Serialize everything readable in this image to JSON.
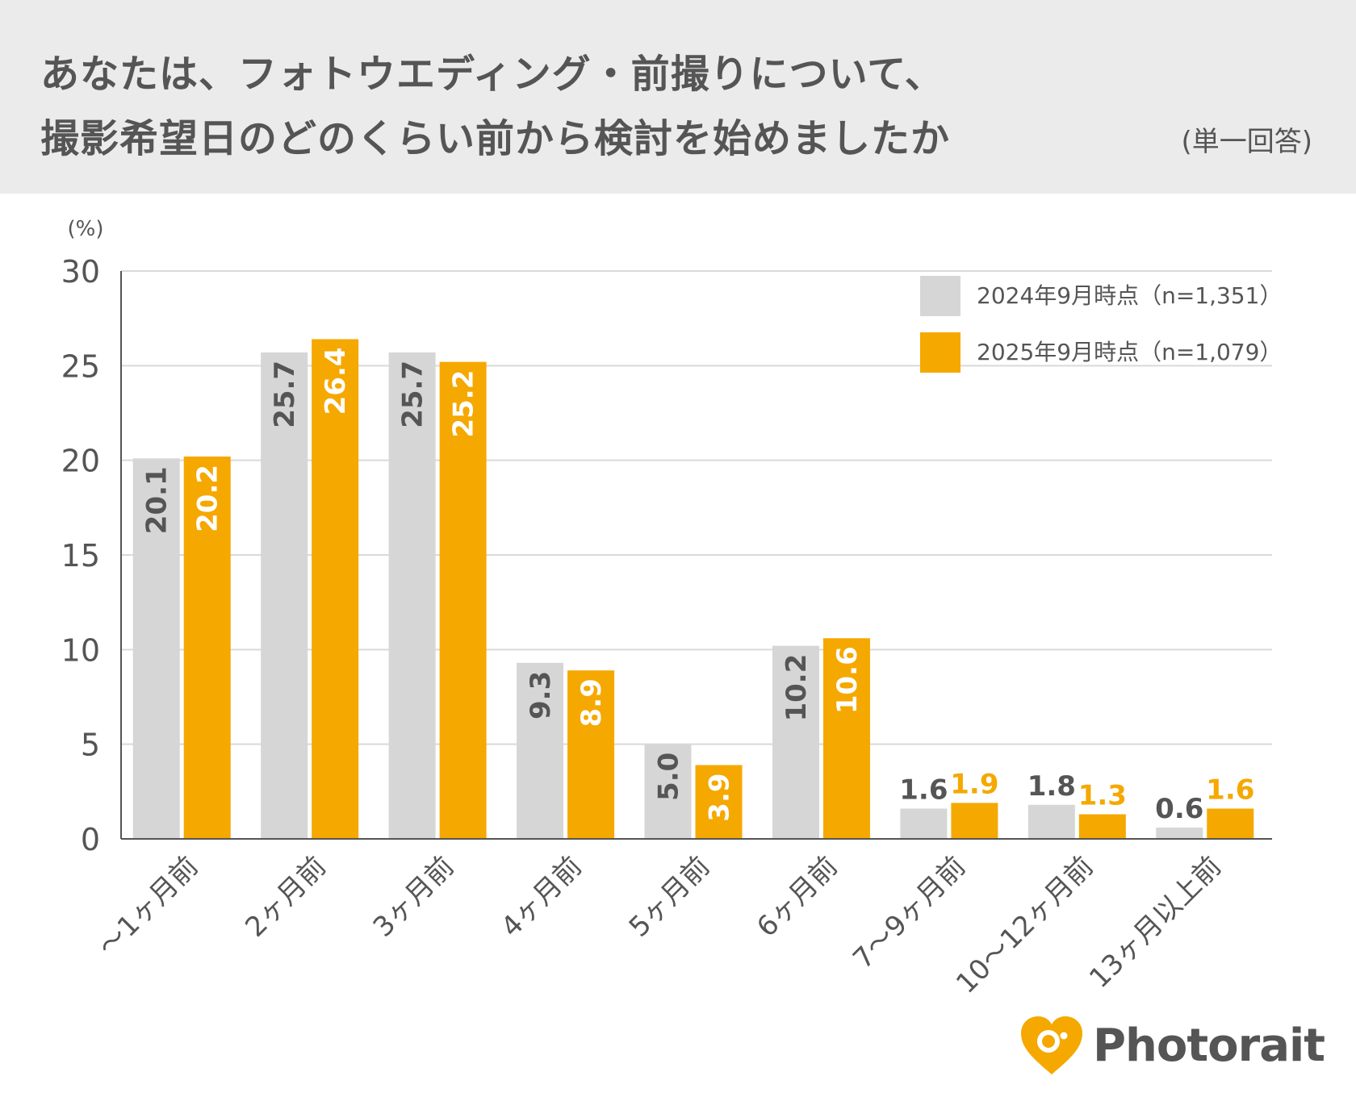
{
  "header": {
    "title_line1": "あなたは、フォトウエディング・前撮りについて、",
    "title_line2": "撮影希望日のどのくらい前から検討を始めましたか",
    "note": "(単一回答)"
  },
  "colors": {
    "series_2024": "#d6d6d6",
    "series_2025": "#f5a800",
    "label_2024": "#555555",
    "label_2025_inside": "#ffffff",
    "label_2025_outside": "#f5a800",
    "grid": "#d9d9d9",
    "axis": "#555555"
  },
  "chart_data": {
    "type": "bar",
    "unit_label": "(%)",
    "ylim": [
      0,
      30
    ],
    "yticks": [
      0,
      5,
      10,
      15,
      20,
      25,
      30
    ],
    "grid": true,
    "legend_position": "top-right",
    "categories": [
      "〜1ヶ月前",
      "2ヶ月前",
      "3ヶ月前",
      "4ヶ月前",
      "5ヶ月前",
      "6ヶ月前",
      "7〜9ヶ月前",
      "10〜12ヶ月前",
      "13ヶ月以上前"
    ],
    "series": [
      {
        "name": "2024年9月時点（n=1,351）",
        "values": [
          20.1,
          25.7,
          25.7,
          9.3,
          5.0,
          10.2,
          1.6,
          1.8,
          0.6
        ],
        "labels": [
          "20.1",
          "25.7",
          "25.7",
          "9.3",
          "5.0",
          "10.2",
          "1.6",
          "1.8",
          "0.6"
        ]
      },
      {
        "name": "2025年9月時点（n=1,079）",
        "values": [
          20.2,
          26.4,
          25.2,
          8.9,
          3.9,
          10.6,
          1.9,
          1.3,
          1.6
        ],
        "labels": [
          "20.2",
          "26.4",
          "25.2",
          "8.9",
          "3.9",
          "10.6",
          "1.9",
          "1.3",
          "1.6"
        ]
      }
    ]
  },
  "logo": {
    "text": "Photorait"
  }
}
